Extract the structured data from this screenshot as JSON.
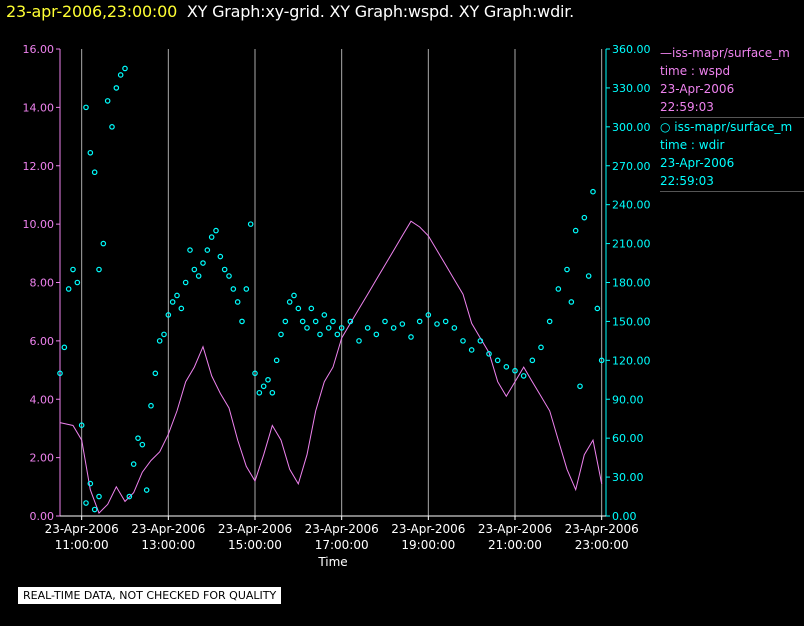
{
  "header": {
    "timestamp": "23-apr-2006,23:00:00",
    "titles": "XY Graph:xy-grid.  XY Graph:wspd.  XY Graph:wdir."
  },
  "legend": {
    "series1": {
      "line1": "—iss-mapr/surface_m",
      "line2": "time : wspd",
      "line3": "23-Apr-2006",
      "line4": "22:59:03"
    },
    "series2": {
      "line1": "○ iss-mapr/surface_m",
      "line2": "time : wdir",
      "line3": "23-Apr-2006",
      "line4": "22:59:03"
    }
  },
  "quality_note": "REAL-TIME DATA, NOT CHECKED FOR QUALITY",
  "colors": {
    "wspd": "#ee82ee",
    "wdir": "#00ffff",
    "header_ts": "#ffff33",
    "grid": "#aaaaaa"
  },
  "chart_data": {
    "type": "line+scatter",
    "xlabel": "Time",
    "x_hours_range": [
      10.5,
      23.1
    ],
    "x_tick_hours": [
      11,
      13,
      15,
      17,
      19,
      21,
      23
    ],
    "x_tick_labels": [
      [
        "23-Apr-2006",
        "11:00:00"
      ],
      [
        "23-Apr-2006",
        "13:00:00"
      ],
      [
        "23-Apr-2006",
        "15:00:00"
      ],
      [
        "23-Apr-2006",
        "17:00:00"
      ],
      [
        "23-Apr-2006",
        "19:00:00"
      ],
      [
        "23-Apr-2006",
        "21:00:00"
      ],
      [
        "23-Apr-2006",
        "23:00:00"
      ]
    ],
    "left_axis": {
      "series": "wspd",
      "ylim": [
        0,
        16
      ],
      "ticks": [
        "0.00",
        "2.00",
        "4.00",
        "6.00",
        "8.00",
        "10.00",
        "12.00",
        "14.00",
        "16.00"
      ]
    },
    "right_axis": {
      "series": "wdir",
      "ylim": [
        0,
        360
      ],
      "ticks": [
        "0.00",
        "30.00",
        "60.00",
        "90.00",
        "120.00",
        "150.00",
        "180.00",
        "210.00",
        "240.00",
        "270.00",
        "300.00",
        "330.00",
        "360.00"
      ]
    },
    "series": [
      {
        "name": "wspd",
        "style": "line",
        "axis": "left",
        "points": [
          [
            10.5,
            3.2
          ],
          [
            10.8,
            3.1
          ],
          [
            11.0,
            2.6
          ],
          [
            11.2,
            0.9
          ],
          [
            11.4,
            0.1
          ],
          [
            11.6,
            0.4
          ],
          [
            11.8,
            1.0
          ],
          [
            12.0,
            0.5
          ],
          [
            12.2,
            0.8
          ],
          [
            12.4,
            1.5
          ],
          [
            12.6,
            1.9
          ],
          [
            12.8,
            2.2
          ],
          [
            13.0,
            2.8
          ],
          [
            13.2,
            3.6
          ],
          [
            13.4,
            4.6
          ],
          [
            13.6,
            5.1
          ],
          [
            13.8,
            5.8
          ],
          [
            14.0,
            4.8
          ],
          [
            14.2,
            4.2
          ],
          [
            14.4,
            3.7
          ],
          [
            14.6,
            2.6
          ],
          [
            14.8,
            1.7
          ],
          [
            15.0,
            1.2
          ],
          [
            15.2,
            2.1
          ],
          [
            15.4,
            3.1
          ],
          [
            15.6,
            2.6
          ],
          [
            15.8,
            1.6
          ],
          [
            16.0,
            1.1
          ],
          [
            16.2,
            2.1
          ],
          [
            16.4,
            3.6
          ],
          [
            16.6,
            4.6
          ],
          [
            16.8,
            5.1
          ],
          [
            17.0,
            6.1
          ],
          [
            17.2,
            6.6
          ],
          [
            17.4,
            7.1
          ],
          [
            17.6,
            7.6
          ],
          [
            17.8,
            8.1
          ],
          [
            18.0,
            8.6
          ],
          [
            18.2,
            9.1
          ],
          [
            18.4,
            9.6
          ],
          [
            18.6,
            10.1
          ],
          [
            18.8,
            9.9
          ],
          [
            19.0,
            9.6
          ],
          [
            19.2,
            9.1
          ],
          [
            19.4,
            8.6
          ],
          [
            19.6,
            8.1
          ],
          [
            19.8,
            7.6
          ],
          [
            20.0,
            6.6
          ],
          [
            20.2,
            6.1
          ],
          [
            20.4,
            5.6
          ],
          [
            20.6,
            4.6
          ],
          [
            20.8,
            4.1
          ],
          [
            21.0,
            4.6
          ],
          [
            21.2,
            5.1
          ],
          [
            21.4,
            4.6
          ],
          [
            21.6,
            4.1
          ],
          [
            21.8,
            3.6
          ],
          [
            22.0,
            2.6
          ],
          [
            22.2,
            1.6
          ],
          [
            22.4,
            0.9
          ],
          [
            22.6,
            2.1
          ],
          [
            22.8,
            2.6
          ],
          [
            23.0,
            1.1
          ]
        ]
      },
      {
        "name": "wdir",
        "style": "scatter",
        "axis": "right",
        "points": [
          [
            10.5,
            110
          ],
          [
            10.6,
            130
          ],
          [
            10.7,
            175
          ],
          [
            10.8,
            190
          ],
          [
            10.9,
            180
          ],
          [
            11.0,
            70
          ],
          [
            11.1,
            10
          ],
          [
            11.2,
            25
          ],
          [
            11.3,
            5
          ],
          [
            11.4,
            15
          ],
          [
            11.1,
            315
          ],
          [
            11.2,
            280
          ],
          [
            11.3,
            265
          ],
          [
            11.4,
            190
          ],
          [
            11.5,
            210
          ],
          [
            11.6,
            320
          ],
          [
            11.7,
            300
          ],
          [
            11.8,
            330
          ],
          [
            11.9,
            340
          ],
          [
            12.0,
            345
          ],
          [
            12.1,
            15
          ],
          [
            12.2,
            40
          ],
          [
            12.3,
            60
          ],
          [
            12.4,
            55
          ],
          [
            12.5,
            20
          ],
          [
            12.6,
            85
          ],
          [
            12.7,
            110
          ],
          [
            12.8,
            135
          ],
          [
            12.9,
            140
          ],
          [
            13.0,
            155
          ],
          [
            13.1,
            165
          ],
          [
            13.2,
            170
          ],
          [
            13.3,
            160
          ],
          [
            13.4,
            180
          ],
          [
            13.5,
            205
          ],
          [
            13.6,
            190
          ],
          [
            13.7,
            185
          ],
          [
            13.8,
            195
          ],
          [
            13.9,
            205
          ],
          [
            14.0,
            215
          ],
          [
            14.1,
            220
          ],
          [
            14.2,
            200
          ],
          [
            14.3,
            190
          ],
          [
            14.4,
            185
          ],
          [
            14.5,
            175
          ],
          [
            14.6,
            165
          ],
          [
            14.7,
            150
          ],
          [
            14.8,
            175
          ],
          [
            14.9,
            225
          ],
          [
            15.0,
            110
          ],
          [
            15.1,
            95
          ],
          [
            15.2,
            100
          ],
          [
            15.3,
            105
          ],
          [
            15.4,
            95
          ],
          [
            15.5,
            120
          ],
          [
            15.6,
            140
          ],
          [
            15.7,
            150
          ],
          [
            15.8,
            165
          ],
          [
            15.9,
            170
          ],
          [
            16.0,
            160
          ],
          [
            16.1,
            150
          ],
          [
            16.2,
            145
          ],
          [
            16.3,
            160
          ],
          [
            16.4,
            150
          ],
          [
            16.5,
            140
          ],
          [
            16.6,
            155
          ],
          [
            16.7,
            145
          ],
          [
            16.8,
            150
          ],
          [
            16.9,
            140
          ],
          [
            17.0,
            145
          ],
          [
            17.2,
            150
          ],
          [
            17.4,
            135
          ],
          [
            17.6,
            145
          ],
          [
            17.8,
            140
          ],
          [
            18.0,
            150
          ],
          [
            18.2,
            145
          ],
          [
            18.4,
            148
          ],
          [
            18.6,
            138
          ],
          [
            18.8,
            150
          ],
          [
            19.0,
            155
          ],
          [
            19.2,
            148
          ],
          [
            19.4,
            150
          ],
          [
            19.6,
            145
          ],
          [
            19.8,
            135
          ],
          [
            20.0,
            128
          ],
          [
            20.2,
            135
          ],
          [
            20.4,
            125
          ],
          [
            20.6,
            120
          ],
          [
            20.8,
            115
          ],
          [
            21.0,
            112
          ],
          [
            21.2,
            108
          ],
          [
            21.4,
            120
          ],
          [
            21.6,
            130
          ],
          [
            21.8,
            150
          ],
          [
            22.0,
            175
          ],
          [
            22.2,
            190
          ],
          [
            22.4,
            220
          ],
          [
            22.6,
            230
          ],
          [
            22.8,
            250
          ],
          [
            22.9,
            160
          ],
          [
            23.0,
            120
          ],
          [
            22.5,
            100
          ],
          [
            22.7,
            185
          ],
          [
            22.3,
            165
          ]
        ]
      }
    ]
  }
}
